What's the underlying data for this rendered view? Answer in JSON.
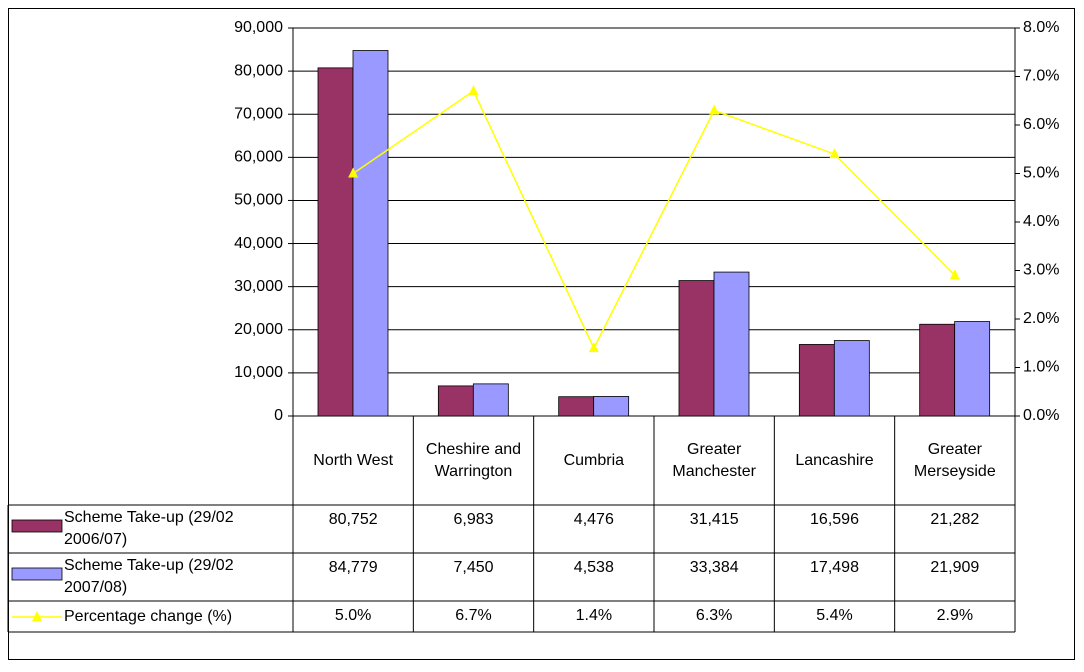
{
  "chart_data": {
    "type": "bar",
    "categories": [
      "North West",
      "Cheshire and Warrington",
      "Cumbria",
      "Greater Manchester",
      "Lancashire",
      "Greater Merseyside"
    ],
    "series": [
      {
        "name": "Scheme Take-up (29/02 2006/07)",
        "color": "#993366",
        "values": [
          80752,
          6983,
          4476,
          31415,
          16596,
          21282
        ],
        "value_labels": [
          "80,752",
          "6,983",
          "4,476",
          "31,415",
          "16,596",
          "21,282"
        ]
      },
      {
        "name": "Scheme Take-up (29/02 2007/08)",
        "color": "#9999ff",
        "values": [
          84779,
          7450,
          4538,
          33384,
          17498,
          21909
        ],
        "value_labels": [
          "84,779",
          "7,450",
          "4,538",
          "33,384",
          "17,498",
          "21,909"
        ]
      },
      {
        "name": "Percentage change (%)",
        "type": "line",
        "axis": "y2",
        "color": "#ffff00",
        "values": [
          5.0,
          6.7,
          1.4,
          6.3,
          5.4,
          2.9
        ],
        "value_labels": [
          "5.0%",
          "6.7%",
          "1.4%",
          "6.3%",
          "5.4%",
          "2.9%"
        ]
      }
    ],
    "ylim": [
      0,
      90000
    ],
    "yticks": [
      0,
      {
        "value": 10000,
        "label": "10,000"
      },
      {
        "value": 20000,
        "label": "20,000"
      },
      {
        "value": 30000,
        "label": "30,000"
      },
      {
        "value": 40000,
        "label": "40,000"
      },
      {
        "value": 50000,
        "label": "50,000"
      },
      {
        "value": 60000,
        "label": "60,000"
      },
      {
        "value": 70000,
        "label": "70,000"
      },
      {
        "value": 80000,
        "label": "80,000"
      },
      {
        "value": 90000,
        "label": "90,000"
      }
    ],
    "y2lim": [
      0,
      8
    ],
    "y2ticks": [
      {
        "value": 0,
        "label": "0.0%"
      },
      {
        "value": 1,
        "label": "1.0%"
      },
      {
        "value": 2,
        "label": "2.0%"
      },
      {
        "value": 3,
        "label": "3.0%"
      },
      {
        "value": 4,
        "label": "4.0%"
      },
      {
        "value": 5,
        "label": "5.0%"
      },
      {
        "value": 6,
        "label": "6.0%"
      },
      {
        "value": 7,
        "label": "7.0%"
      },
      {
        "value": 8,
        "label": "8.0%"
      }
    ],
    "grid": true
  }
}
